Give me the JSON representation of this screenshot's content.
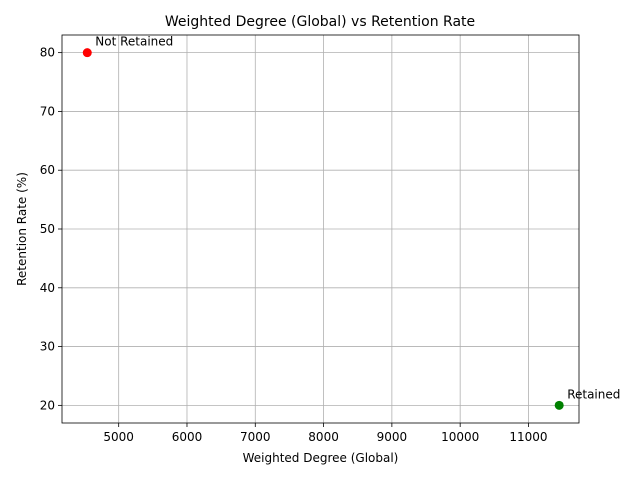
{
  "chart_data": {
    "type": "scatter",
    "title": "Weighted Degree (Global) vs Retention Rate",
    "xlabel": "Weighted Degree (Global)",
    "ylabel": "Retention Rate (%)",
    "xlim": [
      4170,
      11740
    ],
    "ylim": [
      17,
      83
    ],
    "xticks": [
      5000,
      6000,
      7000,
      8000,
      9000,
      10000,
      11000
    ],
    "yticks": [
      20,
      30,
      40,
      50,
      60,
      70,
      80
    ],
    "grid": true,
    "points": [
      {
        "x": 4540,
        "y": 80,
        "label": "Not Retained",
        "color": "#ff0000"
      },
      {
        "x": 11450,
        "y": 20,
        "label": "Retained",
        "color": "#008000"
      }
    ]
  }
}
